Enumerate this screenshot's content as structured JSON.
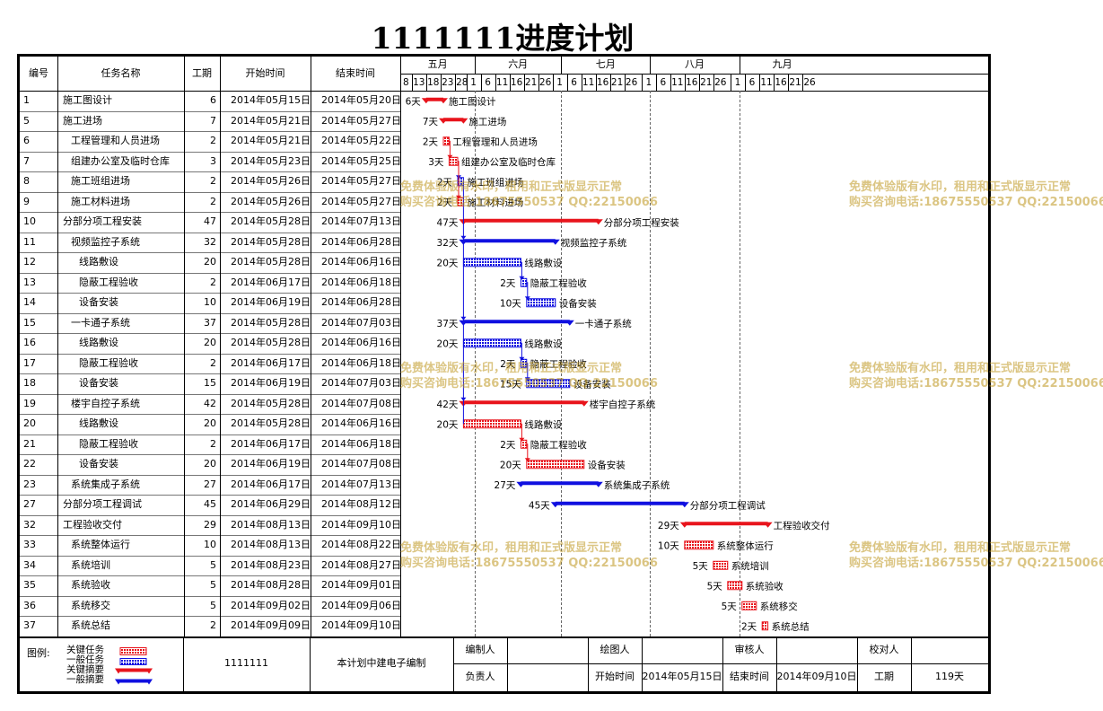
{
  "title": "1111111进度计划",
  "headers": {
    "id": "编号",
    "name": "任务名称",
    "dur": "工期",
    "start": "开始时间",
    "end": "结束时间"
  },
  "months": [
    "五月",
    "六月",
    "七月",
    "八月",
    "九月"
  ],
  "ticks": [
    "8",
    "13",
    "18",
    "23",
    "28",
    "1",
    "6",
    "11",
    "16",
    "21",
    "26",
    "1",
    "6",
    "11",
    "16",
    "21",
    "26",
    "1",
    "6",
    "11",
    "16",
    "21",
    "26",
    "1",
    "6",
    "11",
    "16",
    "21",
    "26"
  ],
  "tasks": [
    {
      "id": "1",
      "name": "施工图设计",
      "indent": 0,
      "dur": "6",
      "start": "2014年05月15日",
      "end": "2014年05月20日",
      "bar_label": "6天",
      "bar_text": "施工图设计",
      "kind": "summary",
      "critical": true
    },
    {
      "id": "5",
      "name": "施工进场",
      "indent": 0,
      "dur": "7",
      "start": "2014年05月21日",
      "end": "2014年05月27日",
      "bar_label": "7天",
      "bar_text": "施工进场",
      "kind": "summary",
      "critical": true
    },
    {
      "id": "6",
      "name": "工程管理和人员进场",
      "indent": 1,
      "dur": "2",
      "start": "2014年05月21日",
      "end": "2014年05月22日",
      "bar_label": "2天",
      "bar_text": "工程管理和人员进场",
      "kind": "task",
      "critical": true
    },
    {
      "id": "7",
      "name": "组建办公室及临时仓库",
      "indent": 1,
      "dur": "3",
      "start": "2014年05月23日",
      "end": "2014年05月25日",
      "bar_label": "3天",
      "bar_text": "组建办公室及临时仓库",
      "kind": "task",
      "critical": true
    },
    {
      "id": "8",
      "name": "施工班组进场",
      "indent": 1,
      "dur": "2",
      "start": "2014年05月26日",
      "end": "2014年05月27日",
      "bar_label": "2天",
      "bar_text": "施工班组进场",
      "kind": "task",
      "critical": false
    },
    {
      "id": "9",
      "name": "施工材料进场",
      "indent": 1,
      "dur": "2",
      "start": "2014年05月26日",
      "end": "2014年05月27日",
      "bar_label": "2天",
      "bar_text": "施工材料进场",
      "kind": "task",
      "critical": true
    },
    {
      "id": "10",
      "name": "分部分项工程安装",
      "indent": 0,
      "dur": "47",
      "start": "2014年05月28日",
      "end": "2014年07月13日",
      "bar_label": "47天",
      "bar_text": "分部分项工程安装",
      "kind": "summary",
      "critical": true
    },
    {
      "id": "11",
      "name": "视频监控子系统",
      "indent": 1,
      "dur": "32",
      "start": "2014年05月28日",
      "end": "2014年06月28日",
      "bar_label": "32天",
      "bar_text": "视频监控子系统",
      "kind": "summary",
      "critical": false
    },
    {
      "id": "12",
      "name": "线路敷设",
      "indent": 2,
      "dur": "20",
      "start": "2014年05月28日",
      "end": "2014年06月16日",
      "bar_label": "20天",
      "bar_text": "线路敷设",
      "kind": "task",
      "critical": false
    },
    {
      "id": "13",
      "name": "隐蔽工程验收",
      "indent": 2,
      "dur": "2",
      "start": "2014年06月17日",
      "end": "2014年06月18日",
      "bar_label": "2天",
      "bar_text": "隐蔽工程验收",
      "kind": "task",
      "critical": false
    },
    {
      "id": "14",
      "name": "设备安装",
      "indent": 2,
      "dur": "10",
      "start": "2014年06月19日",
      "end": "2014年06月28日",
      "bar_label": "10天",
      "bar_text": "设备安装",
      "kind": "task",
      "critical": false
    },
    {
      "id": "15",
      "name": "一卡通子系统",
      "indent": 1,
      "dur": "37",
      "start": "2014年05月28日",
      "end": "2014年07月03日",
      "bar_label": "37天",
      "bar_text": "一卡通子系统",
      "kind": "summary",
      "critical": false
    },
    {
      "id": "16",
      "name": "线路敷设",
      "indent": 2,
      "dur": "20",
      "start": "2014年05月28日",
      "end": "2014年06月16日",
      "bar_label": "20天",
      "bar_text": "线路敷设",
      "kind": "task",
      "critical": false
    },
    {
      "id": "17",
      "name": "隐蔽工程验收",
      "indent": 2,
      "dur": "2",
      "start": "2014年06月17日",
      "end": "2014年06月18日",
      "bar_label": "2天",
      "bar_text": "隐蔽工程验收",
      "kind": "task",
      "critical": false
    },
    {
      "id": "18",
      "name": "设备安装",
      "indent": 2,
      "dur": "15",
      "start": "2014年06月19日",
      "end": "2014年07月03日",
      "bar_label": "15天",
      "bar_text": "设备安装",
      "kind": "task",
      "critical": false
    },
    {
      "id": "19",
      "name": "楼宇自控子系统",
      "indent": 1,
      "dur": "42",
      "start": "2014年05月28日",
      "end": "2014年07月08日",
      "bar_label": "42天",
      "bar_text": "楼宇自控子系统",
      "kind": "summary",
      "critical": true
    },
    {
      "id": "20",
      "name": "线路敷设",
      "indent": 2,
      "dur": "20",
      "start": "2014年05月28日",
      "end": "2014年06月16日",
      "bar_label": "20天",
      "bar_text": "线路敷设",
      "kind": "task",
      "critical": true
    },
    {
      "id": "21",
      "name": "隐蔽工程验收",
      "indent": 2,
      "dur": "2",
      "start": "2014年06月17日",
      "end": "2014年06月18日",
      "bar_label": "2天",
      "bar_text": "隐蔽工程验收",
      "kind": "task",
      "critical": true
    },
    {
      "id": "22",
      "name": "设备安装",
      "indent": 2,
      "dur": "20",
      "start": "2014年06月19日",
      "end": "2014年07月08日",
      "bar_label": "20天",
      "bar_text": "设备安装",
      "kind": "task",
      "critical": true
    },
    {
      "id": "23",
      "name": "系统集成子系统",
      "indent": 1,
      "dur": "27",
      "start": "2014年06月17日",
      "end": "2014年07月13日",
      "bar_label": "27天",
      "bar_text": "系统集成子系统",
      "kind": "summary",
      "critical": false
    },
    {
      "id": "27",
      "name": "分部分项工程调试",
      "indent": 0,
      "dur": "45",
      "start": "2014年06月29日",
      "end": "2014年08月12日",
      "bar_label": "45天",
      "bar_text": "分部分项工程调试",
      "kind": "summary",
      "critical": false
    },
    {
      "id": "32",
      "name": "工程验收交付",
      "indent": 0,
      "dur": "29",
      "start": "2014年08月13日",
      "end": "2014年09月10日",
      "bar_label": "29天",
      "bar_text": "工程验收交付",
      "kind": "summary",
      "critical": true
    },
    {
      "id": "33",
      "name": "系统整体运行",
      "indent": 1,
      "dur": "10",
      "start": "2014年08月13日",
      "end": "2014年08月22日",
      "bar_label": "10天",
      "bar_text": "系统整体运行",
      "kind": "task",
      "critical": true
    },
    {
      "id": "34",
      "name": "系统培训",
      "indent": 1,
      "dur": "5",
      "start": "2014年08月23日",
      "end": "2014年08月27日",
      "bar_label": "5天",
      "bar_text": "系统培训",
      "kind": "task",
      "critical": true
    },
    {
      "id": "35",
      "name": "系统验收",
      "indent": 1,
      "dur": "5",
      "start": "2014年08月28日",
      "end": "2014年09月01日",
      "bar_label": "5天",
      "bar_text": "系统验收",
      "kind": "task",
      "critical": true
    },
    {
      "id": "36",
      "name": "系统移交",
      "indent": 1,
      "dur": "5",
      "start": "2014年09月02日",
      "end": "2014年09月06日",
      "bar_label": "5天",
      "bar_text": "系统移交",
      "kind": "task",
      "critical": true
    },
    {
      "id": "37",
      "name": "系统总结",
      "indent": 1,
      "dur": "2",
      "start": "2014年09月09日",
      "end": "2014年09月10日",
      "bar_label": "2天",
      "bar_text": "系统总结",
      "kind": "task",
      "critical": true
    }
  ],
  "footer": {
    "legend_title": "图例:",
    "legend_items": [
      "关键任务",
      "一般任务",
      "关键摘要",
      "一般摘要"
    ],
    "project": "1111111",
    "note": "本计划中建电子编制",
    "labels": {
      "editor": "编制人",
      "drawer": "绘图人",
      "reviewer": "审核人",
      "checker": "校对人",
      "owner": "负责人",
      "start": "开始时间",
      "end": "结束时间",
      "duration": "工期"
    },
    "start_value": "2014年05月15日",
    "end_value": "2014年09月10日",
    "duration_value": "119天"
  },
  "watermark": {
    "line1": "免费体验版有水印，租用和正式版显示正常",
    "line2": "购买咨询电话:18675550537 QQ:22150066"
  },
  "colors": {
    "critical": "#e8141c",
    "normal": "#1010e0",
    "critical_hatch": "#d86060",
    "normal_hatch": "#6a6ad8"
  }
}
